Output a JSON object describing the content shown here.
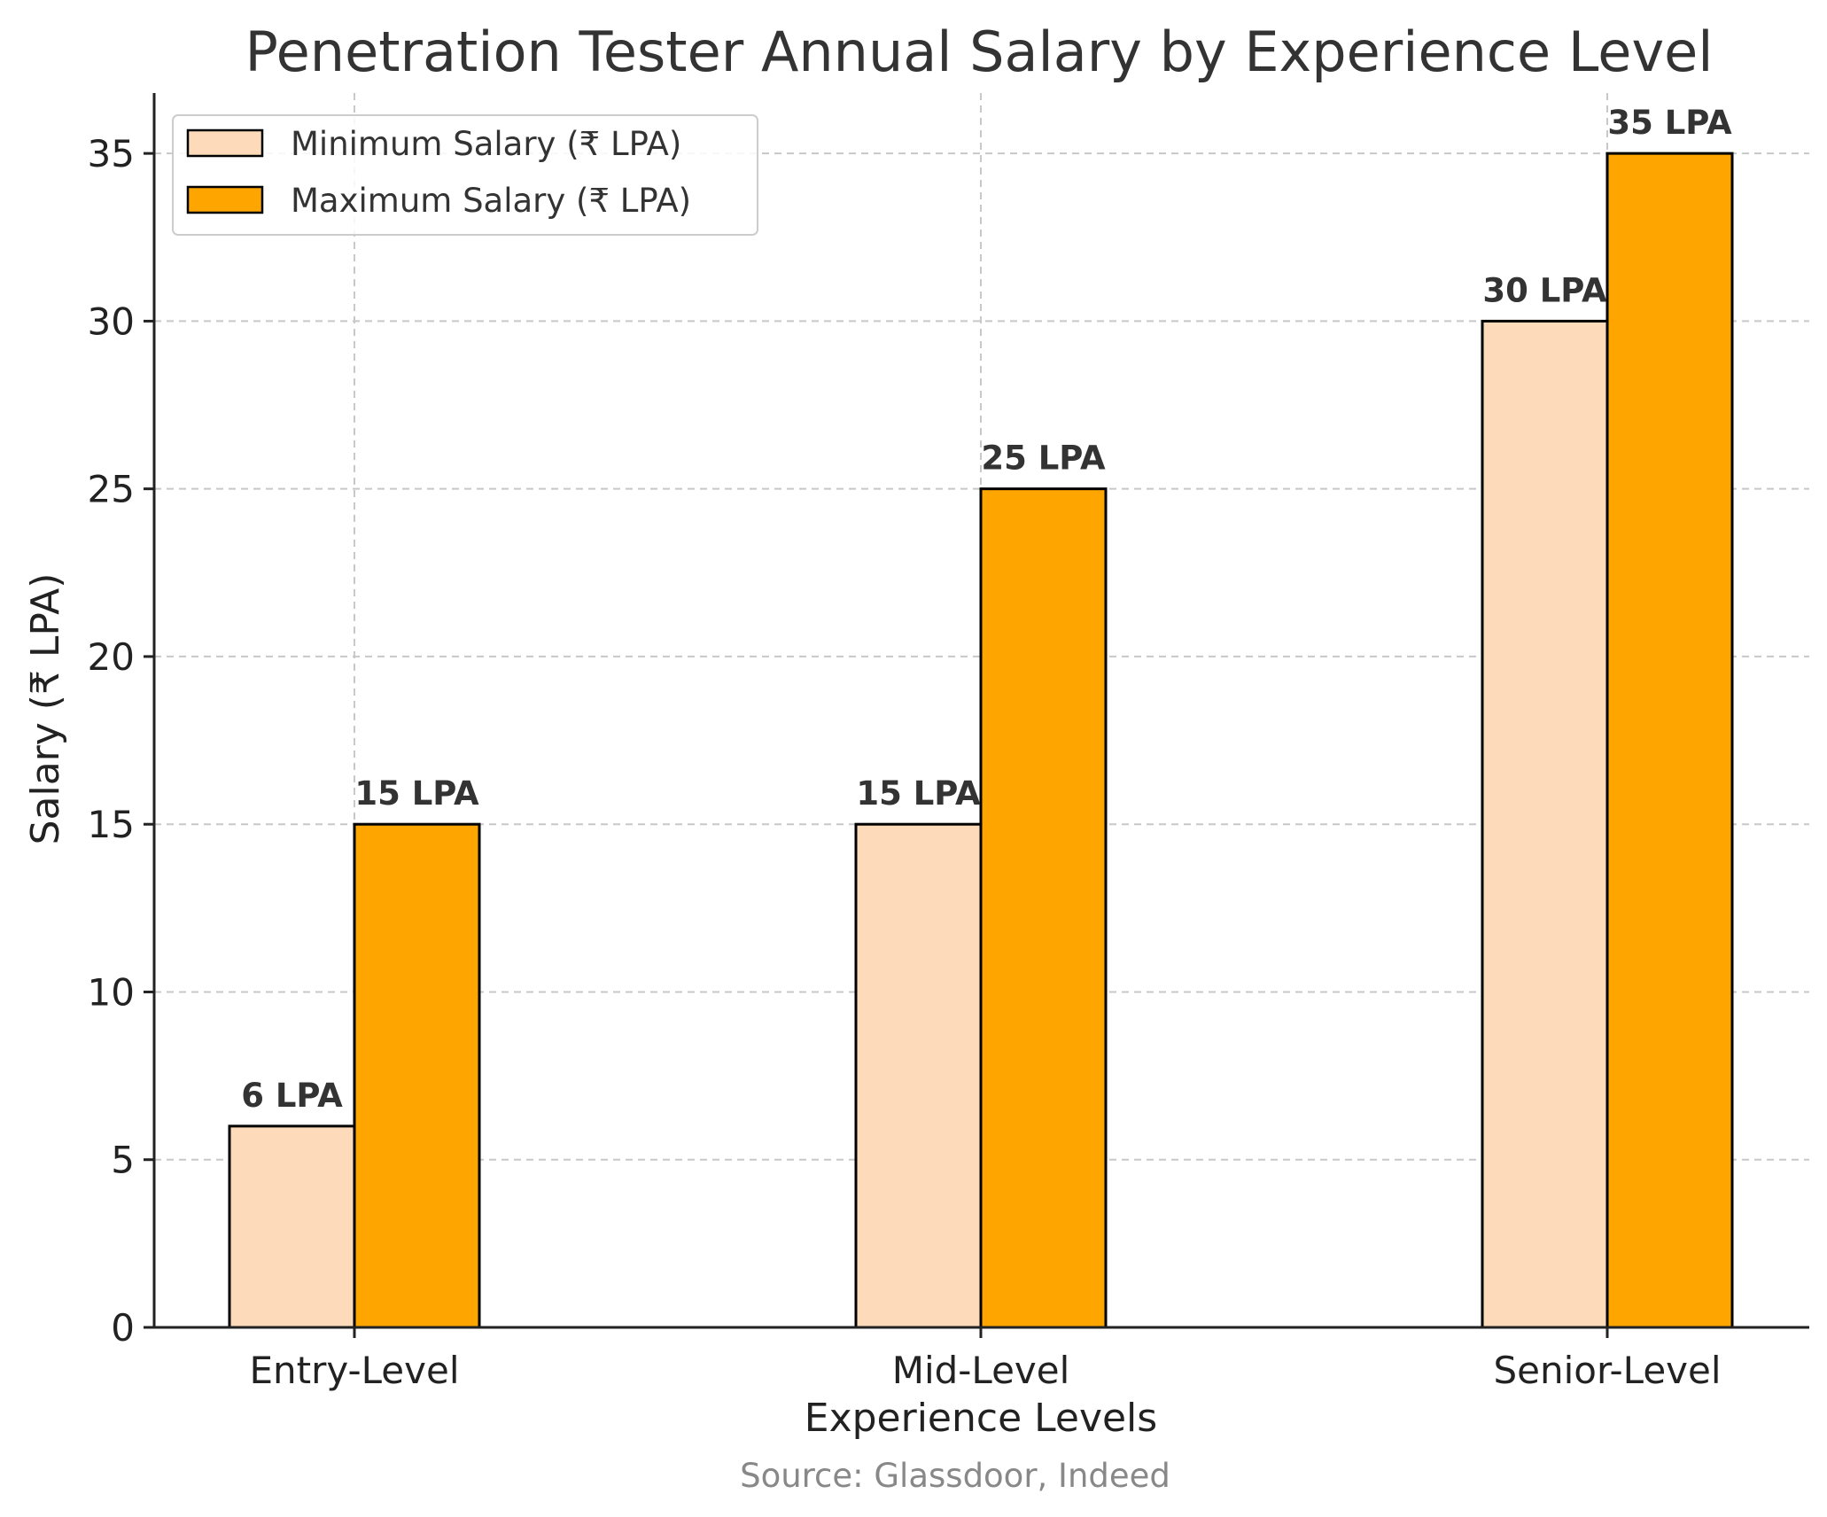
{
  "chart_data": {
    "type": "bar",
    "title": "Penetration Tester Annual Salary by Experience Level",
    "xlabel": "Experience Levels",
    "ylabel": "Salary (₹ LPA)",
    "categories": [
      "Entry-Level",
      "Mid-Level",
      "Senior-Level"
    ],
    "series": [
      {
        "name": "Minimum Salary (₹ LPA)",
        "values": [
          6,
          15,
          30
        ],
        "labels": [
          "6 LPA",
          "15 LPA",
          "30 LPA"
        ],
        "color": "#FDDAB9"
      },
      {
        "name": "Maximum Salary (₹ LPA)",
        "values": [
          15,
          25,
          35
        ],
        "labels": [
          "15 LPA",
          "25 LPA",
          "35 LPA"
        ],
        "color": "#FFA500"
      }
    ],
    "ylim": [
      0,
      36.8
    ],
    "yticks": [
      0,
      5,
      10,
      15,
      20,
      25,
      30,
      35
    ],
    "grid": true,
    "legend_position": "top-left",
    "source": "Source: Glassdoor, Indeed"
  }
}
